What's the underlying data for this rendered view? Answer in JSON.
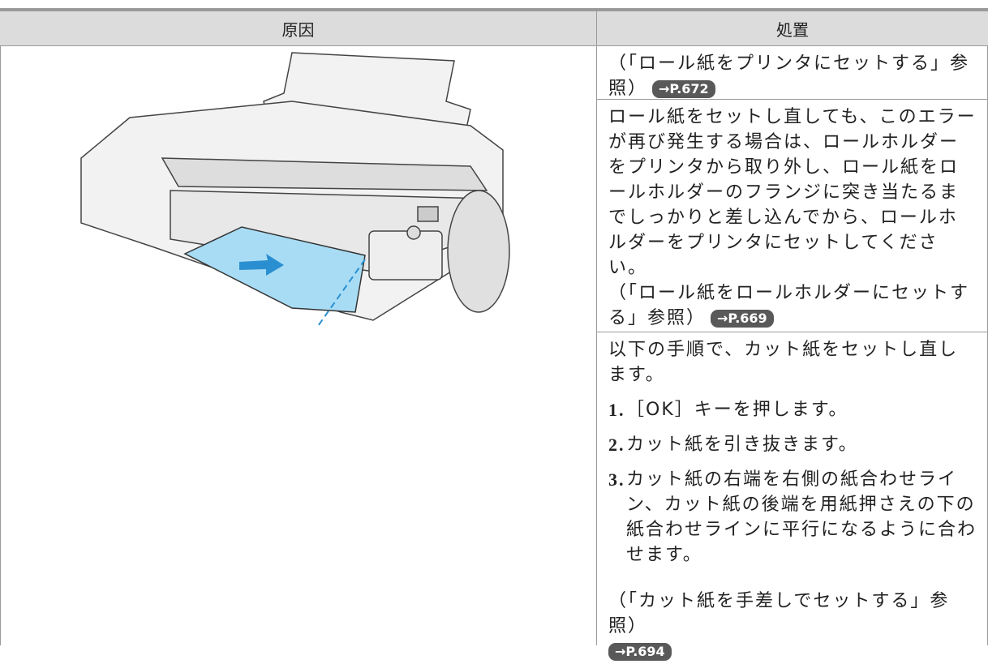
{
  "table": {
    "header": [
      "原因",
      "処置"
    ],
    "cells": [
      {
        "text": "（「ロール紙をプリンタにセットする」参照）",
        "link": "→P.672"
      },
      {
        "text": "ロール紙をセットし直しても、このエラーが再び発生する場合は、ロールホルダーをプリンタから取り外し、ロール紙をロールホルダーのフランジに突き当たるまでしっかりと差し込んでから、ロールホルダーをプリンタにセットしてください。",
        "ref": "（「ロール紙をロールホルダーにセットする」参照）",
        "link": "→P.669"
      },
      {
        "text": "以下の手順で、カット紙をセットし直します。",
        "steps": [
          {
            "number": "1.",
            "text": "［OK］キーを押します。"
          },
          {
            "number": "2.",
            "text": "カット紙を引き抜きます。"
          },
          {
            "number": "3.",
            "text": "カット紙の右端を右側の紙合わせライン、カット紙の後端を用紙押さえの下の紙合わせラインに平行になるように合わせます。"
          }
        ],
        "ref": "（「カット紙を手差しでセットする」参照）",
        "link": "→P.694"
      }
    ]
  }
}
